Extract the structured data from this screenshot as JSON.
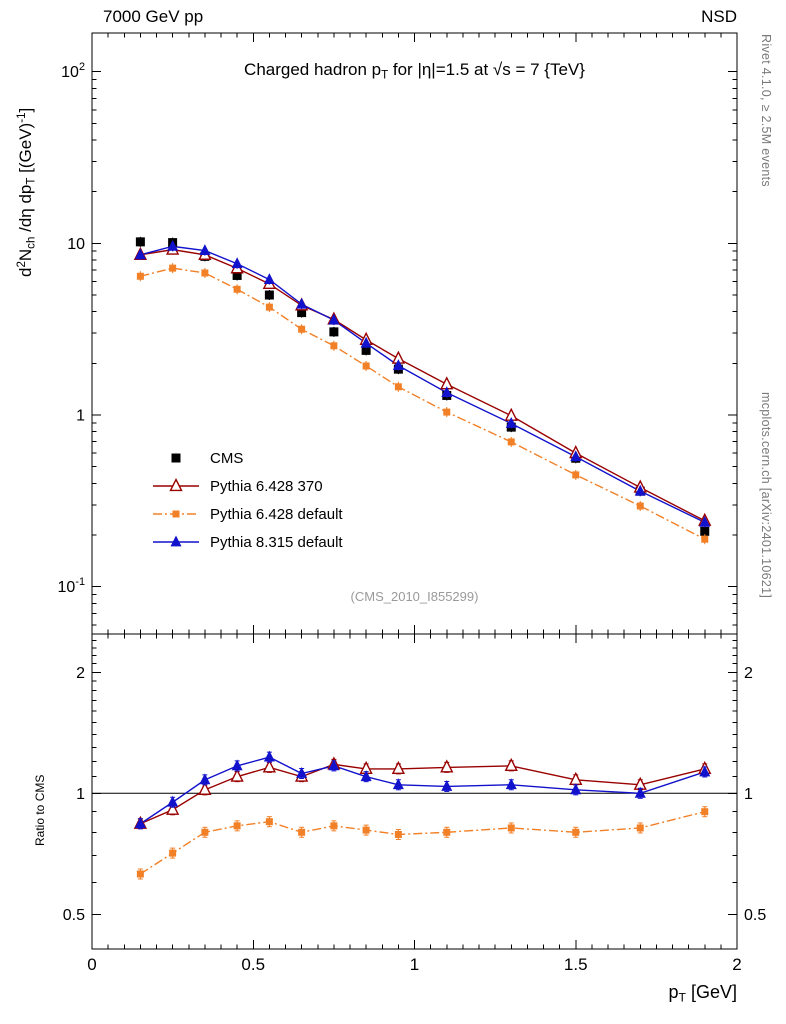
{
  "header": {
    "left": "7000 GeV pp",
    "right": "NSD"
  },
  "side_notes": {
    "top": "Rivet 4.1.0, ≥ 2.5M events",
    "bottom": "mcplots.cern.ch [arXiv:2401.10621]"
  },
  "watermark": "(CMS_2010_I855299)",
  "chart_data": {
    "type": "line",
    "title": "Charged hadron p{_T} for |η|=1.5 at √s = 7 {TeV}",
    "xlabel": "p{_T} [GeV]",
    "ylabel": "d{^2}N{_ch} /dη  dp{_T}  [(GeV){^-1}]",
    "ratio_ylabel": "Ratio to CMS",
    "grid": false,
    "legend_position": "middle-left",
    "x_range": [
      0,
      2
    ],
    "y_range_main": [
      0.053,
      168
    ],
    "y_range_ratio": [
      0.41,
      2.49
    ],
    "y_scale": "log",
    "x_ticks": {
      "values": [
        0,
        0.5,
        1,
        1.5,
        2
      ],
      "labels": [
        "0",
        "0.5",
        "1",
        "1.5",
        "2"
      ]
    },
    "y_ticks_main": {
      "values": [
        0.1,
        1,
        10,
        100
      ],
      "labels": [
        "10^-1",
        "1",
        "10",
        "10^2"
      ]
    },
    "y_ticks_ratio": {
      "values": [
        0.5,
        1,
        2
      ],
      "labels": [
        "0.5",
        "1",
        "2"
      ]
    },
    "x": [
      0.15,
      0.25,
      0.35,
      0.45,
      0.55,
      0.65,
      0.75,
      0.85,
      0.95,
      1.1,
      1.3,
      1.5,
      1.7,
      1.9
    ],
    "series": [
      {
        "key": "cms",
        "name": "CMS",
        "color": "#000000",
        "marker": "square-filled",
        "msize": 4.5,
        "line": "none",
        "values": [
          10.2,
          10.1,
          8.4,
          6.5,
          5.0,
          3.95,
          3.05,
          2.38,
          1.85,
          1.3,
          0.85,
          0.56,
          0.36,
          0.21
        ]
      },
      {
        "key": "p6_370",
        "name": "Pythia 6.428 370",
        "color": "#990000",
        "marker": "triangle-open",
        "msize": 5.5,
        "line": "solid",
        "values": [
          8.57,
          9.19,
          8.57,
          7.15,
          5.8,
          4.35,
          3.6,
          2.74,
          2.13,
          1.51,
          0.99,
          0.6,
          0.378,
          0.242
        ],
        "ratio": [
          0.84,
          0.91,
          1.02,
          1.1,
          1.16,
          1.1,
          1.18,
          1.15,
          1.15,
          1.16,
          1.17,
          1.08,
          1.05,
          1.15
        ]
      },
      {
        "key": "p6_def",
        "name": "Pythia 6.428 default",
        "color": "#f28027",
        "marker": "square-filled",
        "msize": 3.5,
        "line": "dashdot",
        "values": [
          6.43,
          7.17,
          6.72,
          5.4,
          4.25,
          3.16,
          2.53,
          1.93,
          1.46,
          1.04,
          0.697,
          0.448,
          0.295,
          0.189
        ],
        "ratio": [
          0.63,
          0.71,
          0.8,
          0.83,
          0.85,
          0.8,
          0.83,
          0.81,
          0.79,
          0.8,
          0.82,
          0.8,
          0.82,
          0.9
        ]
      },
      {
        "key": "p8_def",
        "name": "Pythia 8.315 default",
        "color": "#1212cc",
        "marker": "triangle-filled",
        "msize": 5.5,
        "line": "solid",
        "values": [
          8.57,
          9.6,
          9.07,
          7.61,
          6.15,
          4.42,
          3.57,
          2.62,
          1.94,
          1.35,
          0.893,
          0.571,
          0.36,
          0.237
        ],
        "ratio": [
          0.84,
          0.95,
          1.08,
          1.17,
          1.23,
          1.12,
          1.17,
          1.1,
          1.05,
          1.04,
          1.05,
          1.02,
          1.0,
          1.13
        ]
      }
    ]
  }
}
